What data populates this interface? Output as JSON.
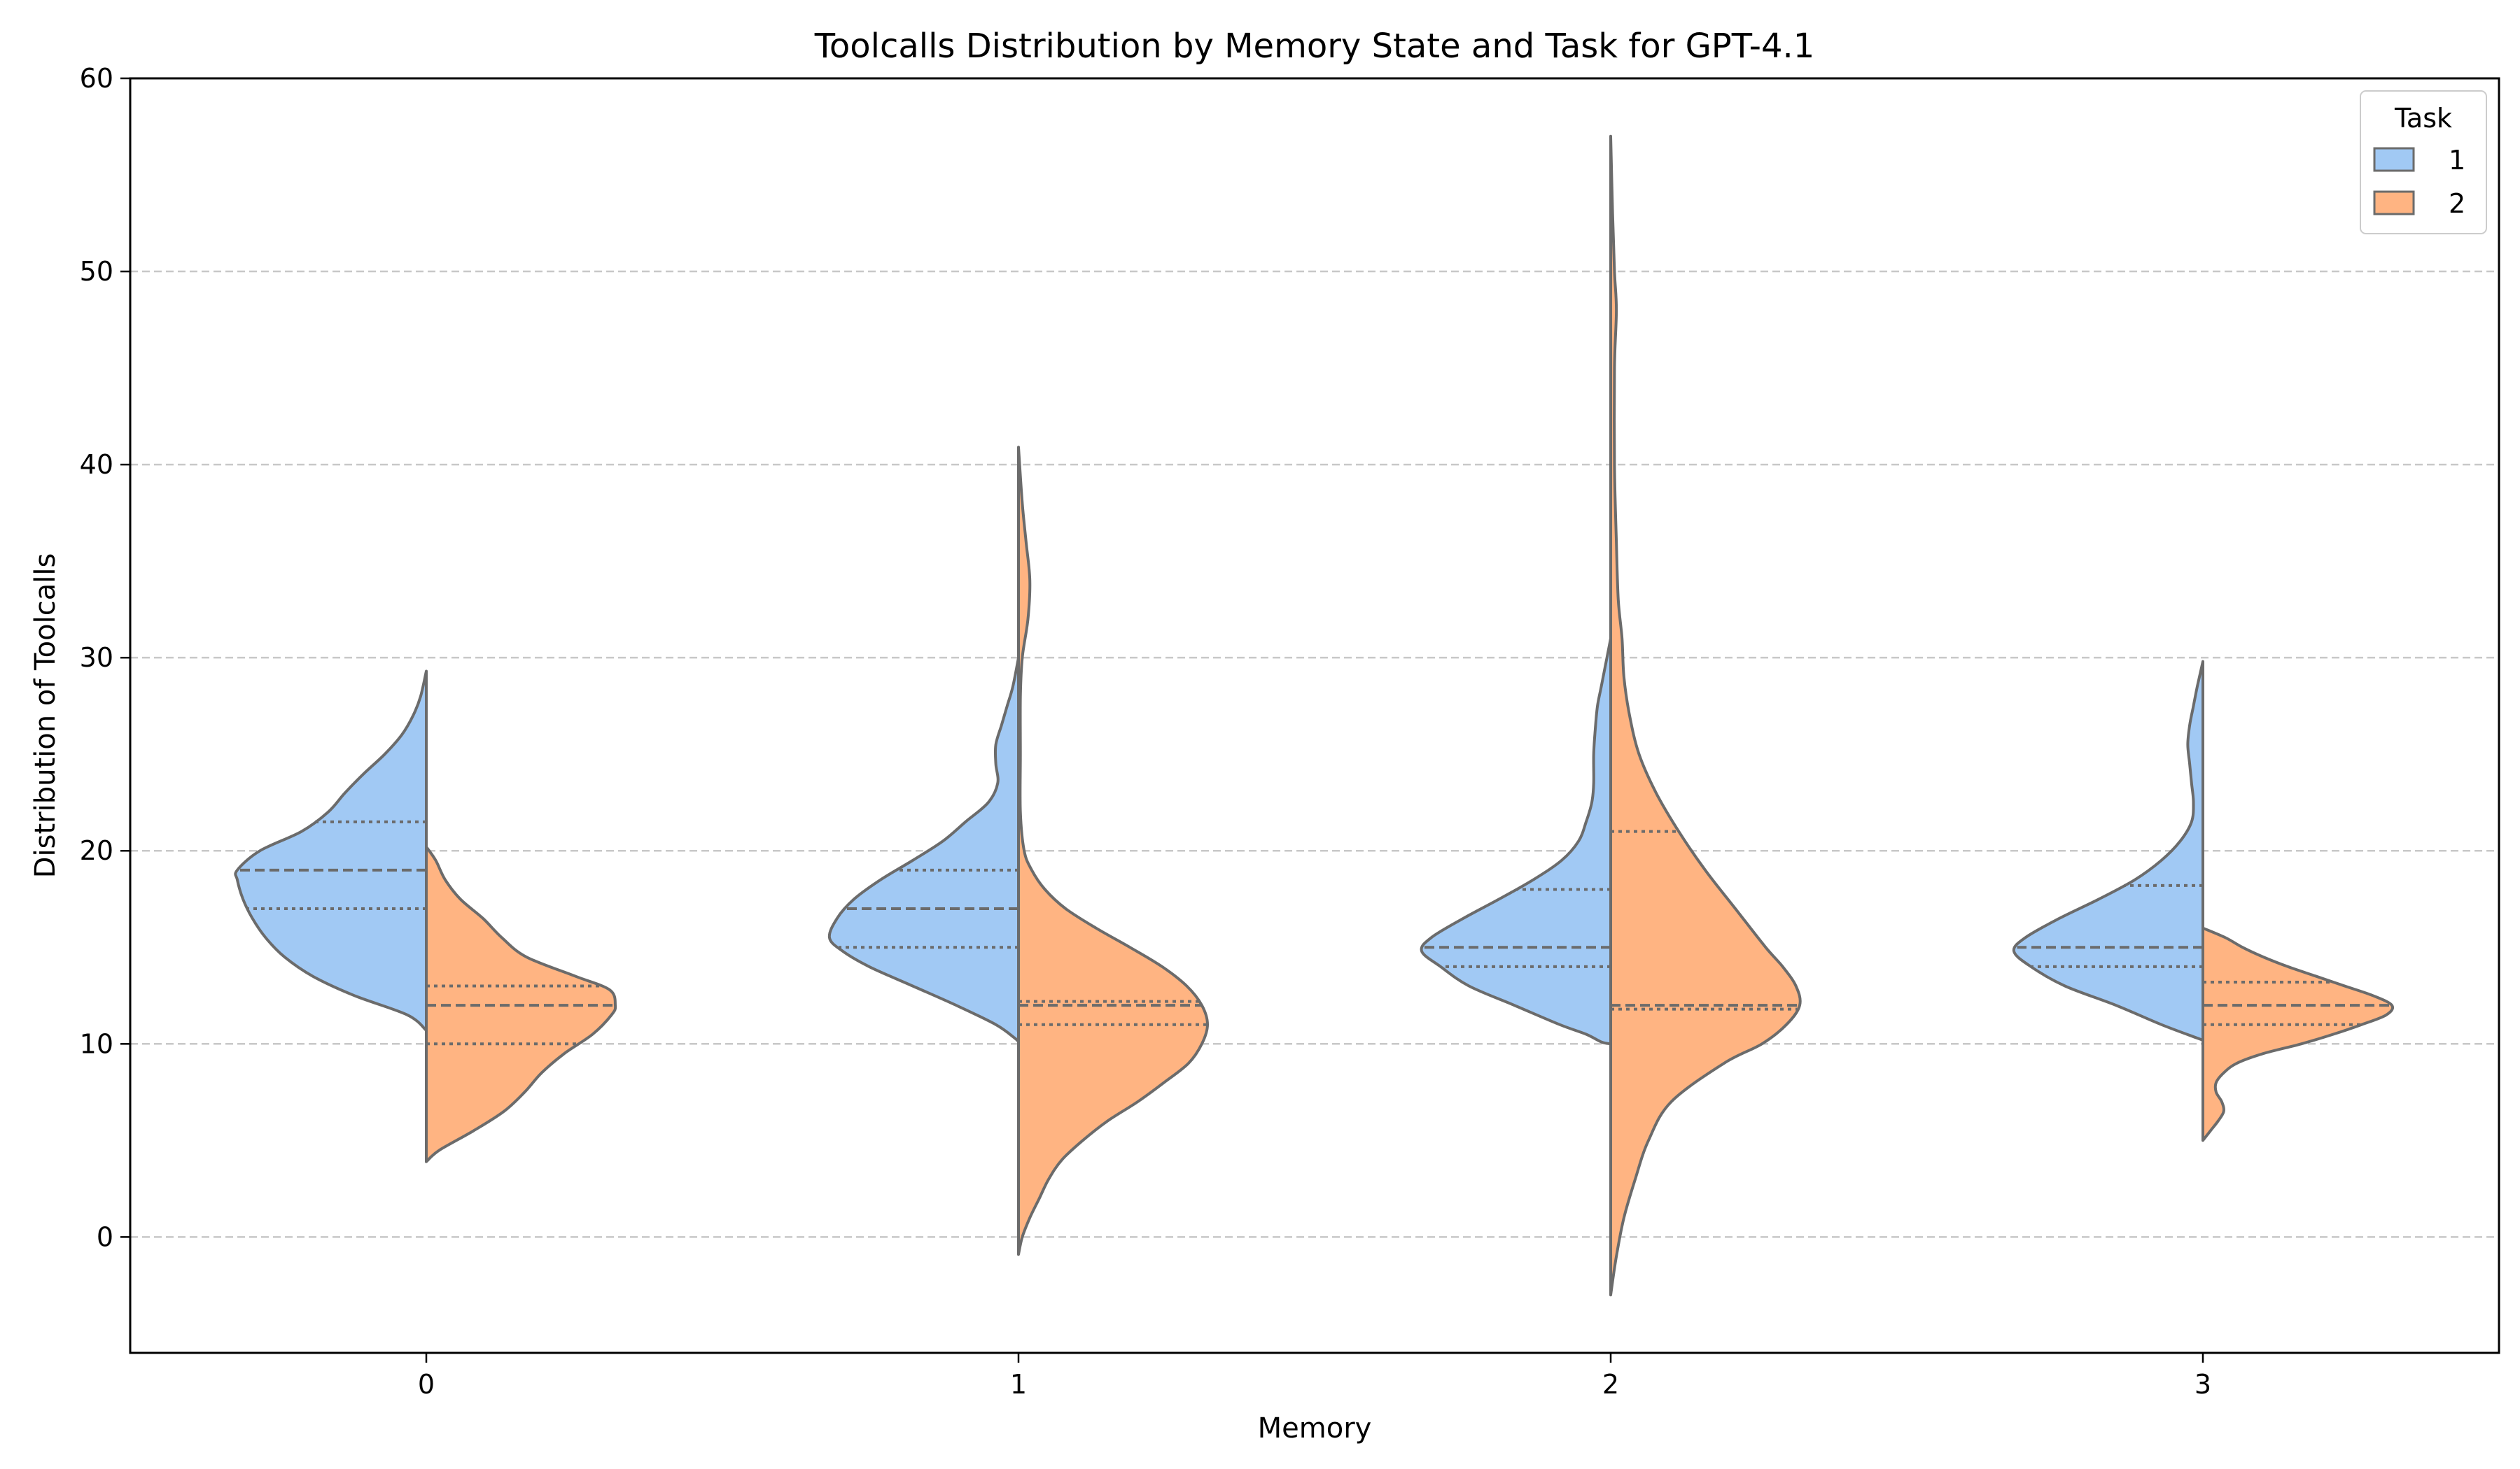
{
  "chart_data": {
    "type": "violin",
    "title": "Toolcalls Distribution by Memory State and Task for GPT-4.1",
    "xlabel": "Memory",
    "ylabel": "Distribution of Toolcalls",
    "categories": [
      "0",
      "1",
      "2",
      "3"
    ],
    "ylim": [
      -6,
      60
    ],
    "yticks": [
      "0",
      "10",
      "20",
      "30",
      "40",
      "50",
      "60"
    ],
    "grid": "horizontal dashed",
    "split": true,
    "legend": {
      "title": "Task",
      "placement": "top-right",
      "entries": [
        {
          "label": "1",
          "color": "#a1c9f4"
        },
        {
          "label": "2",
          "color": "#ffb482"
        }
      ]
    },
    "series": [
      {
        "name": "1",
        "side": "left",
        "color": "#a1c9f4",
        "groups": [
          {
            "category": "0",
            "min": 10.7,
            "max": 29.3,
            "q1": 17,
            "median": 19,
            "q3": 21.5,
            "profile": [
              [
                10.7,
                0
              ],
              [
                11.5,
                0.1
              ],
              [
                12.5,
                0.38
              ],
              [
                13.5,
                0.6
              ],
              [
                14.5,
                0.75
              ],
              [
                15.5,
                0.85
              ],
              [
                16.5,
                0.92
              ],
              [
                17.5,
                0.97
              ],
              [
                18.5,
                1.0
              ],
              [
                19,
                1.0
              ],
              [
                20,
                0.88
              ],
              [
                21,
                0.66
              ],
              [
                22,
                0.52
              ],
              [
                23,
                0.43
              ],
              [
                24,
                0.33
              ],
              [
                25,
                0.22
              ],
              [
                26,
                0.13
              ],
              [
                27,
                0.07
              ],
              [
                28,
                0.03
              ],
              [
                29.3,
                0
              ]
            ]
          },
          {
            "category": "1",
            "min": 10.1,
            "max": 30.0,
            "q1": 15,
            "median": 17,
            "q3": 19,
            "profile": [
              [
                10.1,
                0
              ],
              [
                10.3,
                0.02
              ],
              [
                11,
                0.12
              ],
              [
                12,
                0.33
              ],
              [
                13,
                0.56
              ],
              [
                14,
                0.79
              ],
              [
                14.8,
                0.93
              ],
              [
                15.5,
                1.0
              ],
              [
                16.5,
                0.96
              ],
              [
                17.5,
                0.87
              ],
              [
                18.5,
                0.73
              ],
              [
                19.5,
                0.56
              ],
              [
                20.5,
                0.4
              ],
              [
                21.5,
                0.28
              ],
              [
                22.5,
                0.16
              ],
              [
                23.5,
                0.11
              ],
              [
                24.5,
                0.12
              ],
              [
                25.5,
                0.12
              ],
              [
                26.5,
                0.09
              ],
              [
                27.5,
                0.06
              ],
              [
                28.5,
                0.03
              ],
              [
                30,
                0
              ]
            ]
          },
          {
            "category": "2",
            "min": 10.0,
            "max": 31.0,
            "q1": 14,
            "median": 15,
            "q3": 18,
            "profile": [
              [
                10,
                0
              ],
              [
                10.1,
                0.05
              ],
              [
                10.5,
                0.13
              ],
              [
                11,
                0.27
              ],
              [
                12,
                0.51
              ],
              [
                13,
                0.75
              ],
              [
                14,
                0.9
              ],
              [
                14.8,
                1.0
              ],
              [
                15.5,
                0.95
              ],
              [
                16.5,
                0.78
              ],
              [
                17.5,
                0.59
              ],
              [
                18.5,
                0.41
              ],
              [
                19.5,
                0.26
              ],
              [
                20.5,
                0.17
              ],
              [
                21.5,
                0.13
              ],
              [
                22.5,
                0.1
              ],
              [
                23.5,
                0.09
              ],
              [
                25,
                0.09
              ],
              [
                26.5,
                0.08
              ],
              [
                27.5,
                0.07
              ],
              [
                28.5,
                0.05
              ],
              [
                29.5,
                0.03
              ],
              [
                31,
                0
              ]
            ]
          },
          {
            "category": "3",
            "min": 10.2,
            "max": 29.8,
            "q1": 14,
            "median": 15,
            "q3": 18.2,
            "profile": [
              [
                10.2,
                0
              ],
              [
                10.3,
                0.03
              ],
              [
                11,
                0.22
              ],
              [
                12,
                0.46
              ],
              [
                13,
                0.73
              ],
              [
                14,
                0.91
              ],
              [
                14.8,
                1.0
              ],
              [
                15.5,
                0.94
              ],
              [
                16.5,
                0.76
              ],
              [
                17.5,
                0.55
              ],
              [
                18.5,
                0.36
              ],
              [
                19.5,
                0.22
              ],
              [
                20.5,
                0.12
              ],
              [
                21.5,
                0.06
              ],
              [
                22.5,
                0.05
              ],
              [
                23.5,
                0.06
              ],
              [
                24.5,
                0.07
              ],
              [
                25.5,
                0.08
              ],
              [
                26.5,
                0.07
              ],
              [
                27.5,
                0.05
              ],
              [
                28.5,
                0.03
              ],
              [
                29.8,
                0
              ]
            ]
          }
        ]
      },
      {
        "name": "2",
        "side": "right",
        "color": "#ffb482",
        "groups": [
          {
            "category": "0",
            "min": 3.9,
            "max": 20.2,
            "q1": 10,
            "median": 12,
            "q3": 13,
            "profile": [
              [
                3.9,
                0
              ],
              [
                4.5,
                0.07
              ],
              [
                5.5,
                0.25
              ],
              [
                6.5,
                0.41
              ],
              [
                7.5,
                0.52
              ],
              [
                8.5,
                0.61
              ],
              [
                9.5,
                0.73
              ],
              [
                10.5,
                0.88
              ],
              [
                11.5,
                0.98
              ],
              [
                12,
                1.0
              ],
              [
                12.8,
                0.97
              ],
              [
                13.5,
                0.79
              ],
              [
                14.5,
                0.53
              ],
              [
                15.5,
                0.4
              ],
              [
                16.5,
                0.3
              ],
              [
                17.5,
                0.18
              ],
              [
                18.5,
                0.1
              ],
              [
                19.5,
                0.05
              ],
              [
                20.2,
                0
              ]
            ]
          },
          {
            "category": "1",
            "min": -0.9,
            "max": 40.9,
            "q1": 11,
            "median": 12,
            "q3": 12.2,
            "profile": [
              [
                -0.9,
                0
              ],
              [
                0,
                0.02
              ],
              [
                1,
                0.06
              ],
              [
                2,
                0.11
              ],
              [
                3,
                0.16
              ],
              [
                4,
                0.23
              ],
              [
                5,
                0.34
              ],
              [
                6,
                0.47
              ],
              [
                7,
                0.63
              ],
              [
                8,
                0.77
              ],
              [
                9,
                0.9
              ],
              [
                10,
                0.97
              ],
              [
                11,
                1.0
              ],
              [
                12,
                0.97
              ],
              [
                13,
                0.89
              ],
              [
                14,
                0.76
              ],
              [
                15,
                0.59
              ],
              [
                16,
                0.41
              ],
              [
                17,
                0.25
              ],
              [
                18,
                0.14
              ],
              [
                19,
                0.07
              ],
              [
                20,
                0.03
              ],
              [
                22,
                0.01
              ],
              [
                25,
                0.01
              ],
              [
                28,
                0.01
              ],
              [
                30,
                0.02
              ],
              [
                32,
                0.05
              ],
              [
                34,
                0.06
              ],
              [
                36,
                0.04
              ],
              [
                38,
                0.02
              ],
              [
                40.9,
                0
              ]
            ]
          },
          {
            "category": "2",
            "min": -3.0,
            "max": 57.0,
            "q1": 11.8,
            "median": 12,
            "q3": 21,
            "profile": [
              [
                -3,
                0
              ],
              [
                -1,
                0.03
              ],
              [
                1,
                0.07
              ],
              [
                3,
                0.13
              ],
              [
                5,
                0.2
              ],
              [
                7,
                0.32
              ],
              [
                9,
                0.6
              ],
              [
                10,
                0.8
              ],
              [
                11,
                0.93
              ],
              [
                12,
                1.0
              ],
              [
                13,
                0.98
              ],
              [
                14,
                0.91
              ],
              [
                15,
                0.82
              ],
              [
                17,
                0.66
              ],
              [
                19,
                0.5
              ],
              [
                21,
                0.36
              ],
              [
                23,
                0.24
              ],
              [
                25,
                0.15
              ],
              [
                27,
                0.1
              ],
              [
                29,
                0.07
              ],
              [
                31,
                0.06
              ],
              [
                33,
                0.04
              ],
              [
                36,
                0.03
              ],
              [
                40,
                0.02
              ],
              [
                45,
                0.02
              ],
              [
                48,
                0.03
              ],
              [
                50,
                0.02
              ],
              [
                53,
                0.01
              ],
              [
                57,
                0
              ]
            ]
          },
          {
            "category": "3",
            "min": 5.0,
            "max": 16.0,
            "q1": 11,
            "median": 12,
            "q3": 13.2,
            "profile": [
              [
                5,
                0
              ],
              [
                5.5,
                0.04
              ],
              [
                6,
                0.08
              ],
              [
                6.5,
                0.11
              ],
              [
                7,
                0.1
              ],
              [
                7.5,
                0.07
              ],
              [
                8,
                0.07
              ],
              [
                8.5,
                0.11
              ],
              [
                9,
                0.18
              ],
              [
                9.5,
                0.32
              ],
              [
                10,
                0.52
              ],
              [
                10.5,
                0.69
              ],
              [
                11,
                0.84
              ],
              [
                11.5,
                0.97
              ],
              [
                12,
                1.0
              ],
              [
                12.5,
                0.9
              ],
              [
                13,
                0.75
              ],
              [
                13.5,
                0.6
              ],
              [
                14,
                0.45
              ],
              [
                14.5,
                0.32
              ],
              [
                15,
                0.21
              ],
              [
                15.5,
                0.12
              ],
              [
                16,
                0
              ]
            ]
          }
        ]
      }
    ]
  }
}
